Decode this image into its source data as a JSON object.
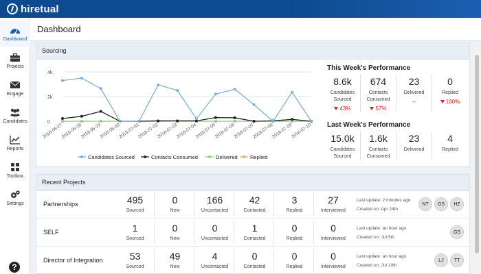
{
  "brand": {
    "name": "hiretual"
  },
  "sidebar": {
    "items": [
      {
        "label": "Dashboard",
        "icon": "dashboard-icon",
        "active": true
      },
      {
        "label": "Projects",
        "icon": "briefcase-icon"
      },
      {
        "label": "Engage",
        "icon": "envelope-icon"
      },
      {
        "label": "Candidates",
        "icon": "people-icon"
      },
      {
        "label": "Reports",
        "icon": "line-chart-icon"
      },
      {
        "label": "Toolbox",
        "icon": "grid-icon"
      },
      {
        "label": "Settings",
        "icon": "gears-icon"
      }
    ],
    "help_label": "?"
  },
  "header": {
    "title": "Dashboard"
  },
  "sourcing": {
    "title": "Sourcing",
    "this_week": {
      "title": "This Week's Performance",
      "cells": [
        {
          "value": "8.6k",
          "label1": "Candidates",
          "label2": "Sourced",
          "change": "43%"
        },
        {
          "value": "674",
          "label1": "Contacts",
          "label2": "Consumed",
          "change": "57%"
        },
        {
          "value": "23",
          "label1": "Delivered",
          "label2": "",
          "change": "--"
        },
        {
          "value": "0",
          "label1": "Replied",
          "label2": "",
          "change": "100%"
        }
      ]
    },
    "last_week": {
      "title": "Last Week's Performance",
      "cells": [
        {
          "value": "15.0k",
          "label1": "Candidates",
          "label2": "Sourced"
        },
        {
          "value": "1.6k",
          "label1": "Contacts",
          "label2": "Consumed"
        },
        {
          "value": "23",
          "label1": "Delivered",
          "label2": ""
        },
        {
          "value": "4",
          "label1": "Replied",
          "label2": ""
        }
      ]
    }
  },
  "chart_data": {
    "type": "line",
    "x": [
      "2018-06-27",
      "2018-06-28",
      "2018-06-29",
      "2018-06-30",
      "2018-07-01",
      "2018-07-02",
      "2018-07-03",
      "2018-07-04",
      "2018-07-05",
      "2018-07-06",
      "2018-07-07",
      "2018-07-08",
      "2018-07-09",
      "2018-07-10"
    ],
    "yticks": [
      "0",
      "2k",
      "4k"
    ],
    "ylim": [
      0,
      4000
    ],
    "grid": true,
    "legend_position": "bottom",
    "series": [
      {
        "name": "Candidates Sourced",
        "color": "#7ab0dc",
        "values": [
          3300,
          3500,
          2650,
          0,
          0,
          2950,
          2500,
          200,
          2200,
          2600,
          1350,
          0,
          2350,
          0
        ]
      },
      {
        "name": "Contacts Consumed",
        "color": "#222222",
        "values": [
          220,
          400,
          800,
          0,
          0,
          30,
          30,
          30,
          300,
          280,
          0,
          30,
          150,
          0
        ]
      },
      {
        "name": "Delivered",
        "color": "#8fd47a",
        "values": [
          0,
          0,
          0,
          0,
          0,
          0,
          0,
          0,
          0,
          0,
          0,
          0,
          0,
          0
        ]
      },
      {
        "name": "Replied",
        "color": "#e8b060",
        "values": [
          0,
          0,
          0,
          0,
          0,
          0,
          0,
          0,
          0,
          0,
          0,
          0,
          0,
          0
        ]
      }
    ]
  },
  "recent_projects": {
    "title": "Recent Projects",
    "metric_labels": [
      "Sourced",
      "New",
      "Uncontacted",
      "Contacted",
      "Replied",
      "Interviewed"
    ],
    "rows": [
      {
        "name": "Partnerships",
        "values": [
          "495",
          "0",
          "166",
          "42",
          "3",
          "27"
        ],
        "last_update": "Last update: 2 minutes ago",
        "created": "Created on: Apr 24th",
        "avatars": [
          "NT",
          "GS",
          "HZ"
        ]
      },
      {
        "name": "SELF",
        "values": [
          "1",
          "0",
          "0",
          "1",
          "0",
          "0"
        ],
        "last_update": "Last update: an hour ago",
        "created": "Created on: Jul 5th",
        "avatars": [
          "GS"
        ]
      },
      {
        "name": "Director of Integration",
        "values": [
          "53",
          "49",
          "4",
          "0",
          "0",
          "0"
        ],
        "last_update": "Last update: an hour ago",
        "created": "Created on: Jul 10th",
        "avatars": [
          "LJ",
          "TT"
        ]
      }
    ]
  }
}
